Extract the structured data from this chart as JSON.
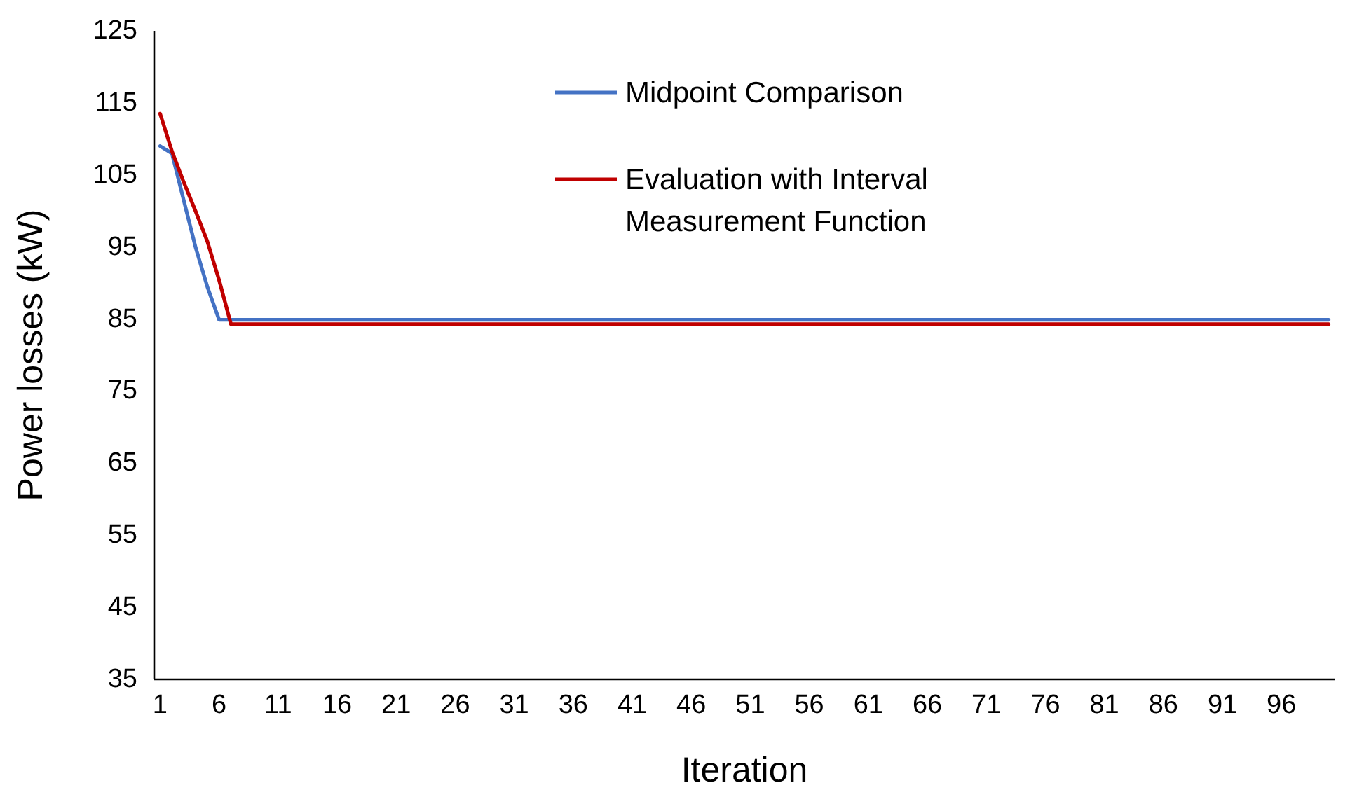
{
  "chart_data": {
    "type": "line",
    "xlabel": "Iteration",
    "ylabel": "Power losses (kW)",
    "xlim": [
      0.5,
      100.5
    ],
    "xticks": [
      1,
      6,
      11,
      16,
      21,
      26,
      31,
      36,
      41,
      46,
      51,
      56,
      61,
      66,
      71,
      76,
      81,
      86,
      91,
      96
    ],
    "ylim": [
      35,
      125
    ],
    "yticks": [
      35,
      45,
      55,
      65,
      75,
      85,
      95,
      105,
      115,
      125
    ],
    "grid": false,
    "legend": "top",
    "marker": "none",
    "line_style": "solid",
    "series": [
      {
        "name": "Midpoint Comparison",
        "color": "#4472c4",
        "x": [
          1,
          2,
          3,
          4,
          5,
          6,
          100
        ],
        "values": [
          109,
          108,
          101.5,
          95,
          89.5,
          84.9,
          84.9
        ]
      },
      {
        "name": "Evaluation with Interval Measurement Function",
        "color": "#c00000",
        "x": [
          1,
          2,
          3,
          4,
          5,
          6,
          7,
          100
        ],
        "values": [
          113.5,
          108.3,
          104,
          100,
          95.8,
          90.4,
          84.3,
          84.3
        ]
      }
    ]
  }
}
